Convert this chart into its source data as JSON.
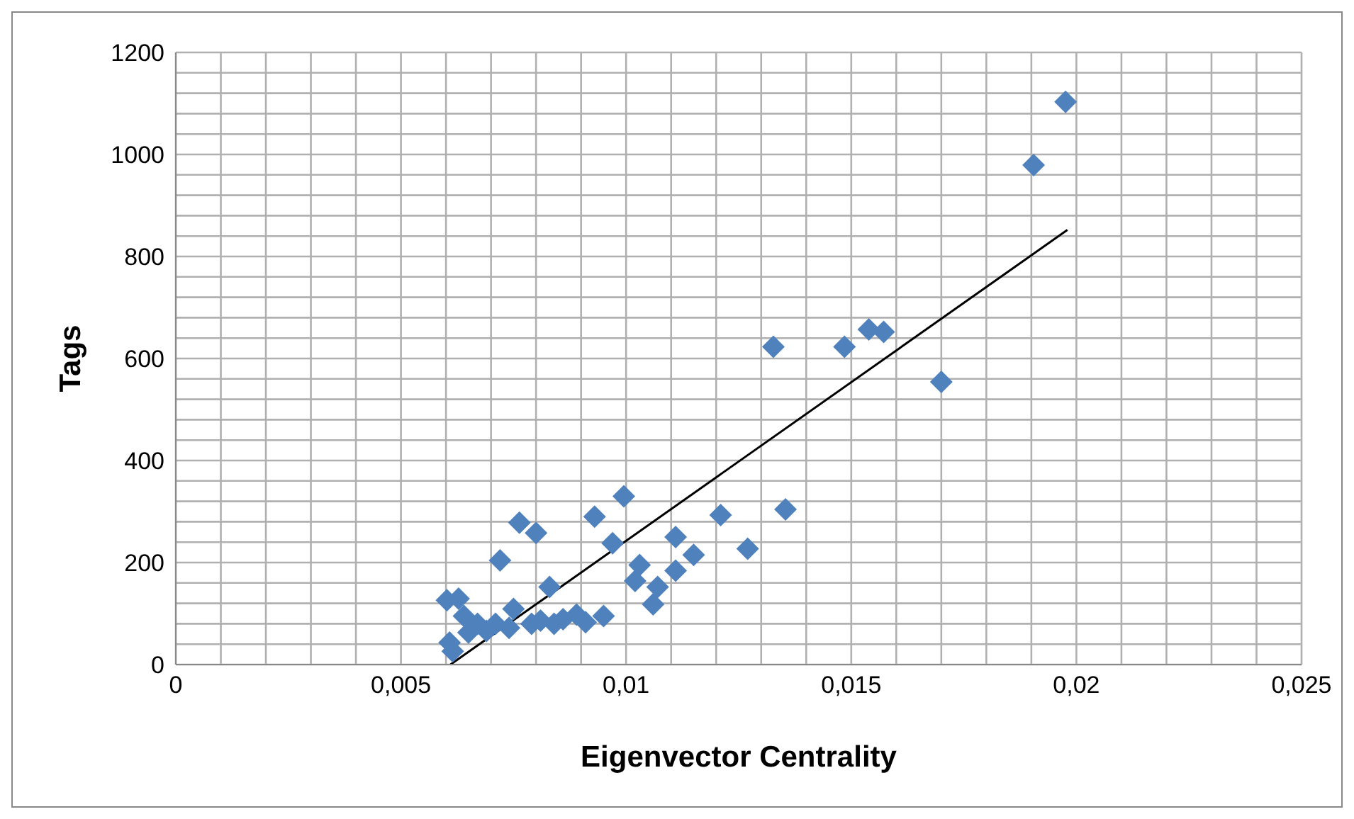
{
  "chart_data": {
    "type": "scatter",
    "xlabel": "Eigenvector Centrality",
    "ylabel": "Tags",
    "xlim": [
      0,
      0.025
    ],
    "xticks": [
      0,
      {
        "value": 0.001,
        "label": null
      },
      {
        "value": 0.002,
        "label": null
      },
      {
        "value": 0.003,
        "label": null
      },
      {
        "value": 0.004,
        "label": null
      },
      {
        "value": 0.005,
        "label": "0,005"
      },
      {
        "value": 0.006,
        "label": null
      },
      {
        "value": 0.007,
        "label": null
      },
      {
        "value": 0.008,
        "label": null
      },
      {
        "value": 0.009,
        "label": null
      },
      {
        "value": 0.01,
        "label": "0,01"
      },
      {
        "value": 0.011,
        "label": null
      },
      {
        "value": 0.012,
        "label": null
      },
      {
        "value": 0.013,
        "label": null
      },
      {
        "value": 0.014,
        "label": null
      },
      {
        "value": 0.015,
        "label": "0,015"
      },
      {
        "value": 0.016,
        "label": null
      },
      {
        "value": 0.017,
        "label": null
      },
      {
        "value": 0.018,
        "label": null
      },
      {
        "value": 0.019,
        "label": null
      },
      {
        "value": 0.02,
        "label": "0,02"
      },
      {
        "value": 0.021,
        "label": null
      },
      {
        "value": 0.022,
        "label": null
      },
      {
        "value": 0.023,
        "label": null
      },
      {
        "value": 0.024,
        "label": null
      },
      {
        "value": 0.025,
        "label": "0,025"
      }
    ],
    "ylim": [
      0,
      1200
    ],
    "yticks": [
      0,
      {
        "value": 40,
        "label": null
      },
      {
        "value": 80,
        "label": null
      },
      {
        "value": 120,
        "label": null
      },
      {
        "value": 160,
        "label": null
      },
      200,
      {
        "value": 240,
        "label": null
      },
      {
        "value": 280,
        "label": null
      },
      {
        "value": 320,
        "label": null
      },
      {
        "value": 360,
        "label": null
      },
      400,
      {
        "value": 440,
        "label": null
      },
      {
        "value": 480,
        "label": null
      },
      {
        "value": 520,
        "label": null
      },
      {
        "value": 560,
        "label": null
      },
      600,
      {
        "value": 640,
        "label": null
      },
      {
        "value": 680,
        "label": null
      },
      {
        "value": 720,
        "label": null
      },
      {
        "value": 760,
        "label": null
      },
      800,
      {
        "value": 840,
        "label": null
      },
      {
        "value": 880,
        "label": null
      },
      {
        "value": 920,
        "label": null
      },
      {
        "value": 960,
        "label": null
      },
      1000,
      {
        "value": 1040,
        "label": null
      },
      {
        "value": 1080,
        "label": null
      },
      {
        "value": 1120,
        "label": null
      },
      {
        "value": 1160,
        "label": null
      },
      1200
    ],
    "grid": true,
    "marker": "diamond",
    "series": [
      {
        "color": "#4f81bd",
        "x": [
          0.00608,
          0.00602,
          0.00628,
          0.00615,
          0.0064,
          0.0065,
          0.0067,
          0.0069,
          0.0072,
          0.0071,
          0.0074,
          0.0075,
          0.00763,
          0.008,
          0.0079,
          0.0081,
          0.0083,
          0.0084,
          0.0086,
          0.0089,
          0.0091,
          0.0093,
          0.0095,
          0.0097,
          0.00995,
          0.0102,
          0.0103,
          0.0106,
          0.0107,
          0.0111,
          0.0111,
          0.0115,
          0.0121,
          0.0127,
          0.01327,
          0.01354,
          0.01485,
          0.01539,
          0.01572,
          0.017,
          0.01905,
          0.01976
        ],
        "values": [
          43,
          126,
          129,
          26,
          95,
          63,
          80,
          66,
          204,
          80,
          72,
          109,
          278,
          258,
          80,
          86,
          152,
          80,
          89,
          98,
          83,
          290,
          95,
          238,
          330,
          164,
          195,
          118,
          152,
          184,
          250,
          215,
          293,
          227,
          623,
          304,
          623,
          657,
          652,
          554,
          979,
          1103
        ]
      },
      {
        "type": "line",
        "color": "#000000",
        "marker": "none",
        "x": [
          0.0061,
          0.0198
        ],
        "values": [
          0,
          852
        ]
      }
    ]
  }
}
